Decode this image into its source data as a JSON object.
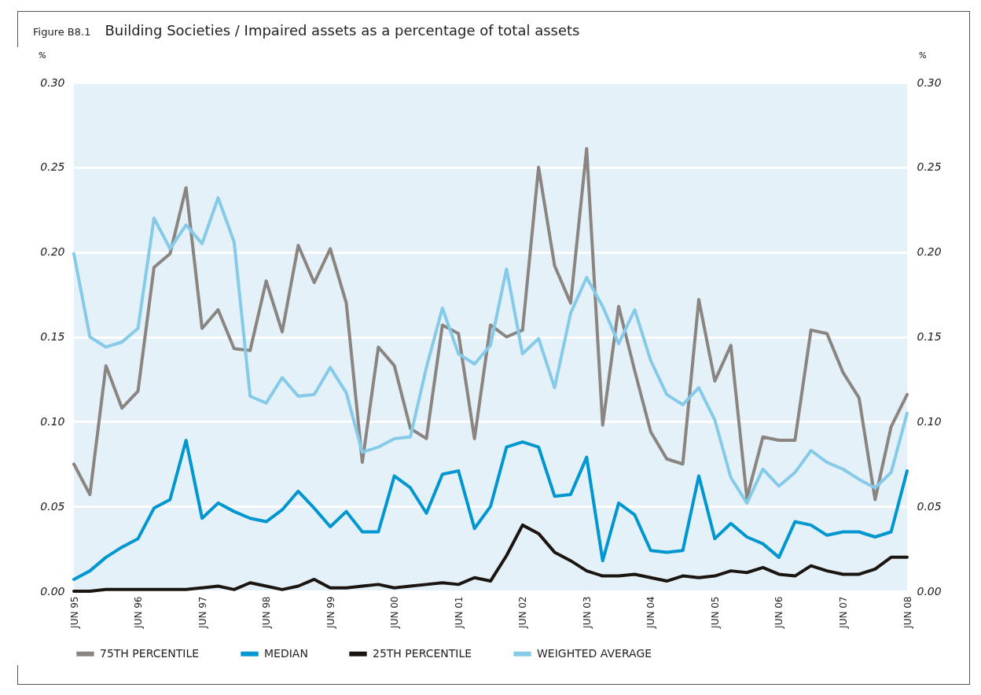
{
  "chart_data": {
    "type": "line",
    "title": "Building Societies / Impaired assets as a percentage of total assets",
    "annotations": [
      "Figure B8.1"
    ],
    "ylabel": "%",
    "y2label": "%",
    "categories": [
      "JUN 95",
      null,
      null,
      null,
      "JUN 96",
      null,
      null,
      null,
      "JUN 97",
      null,
      null,
      null,
      "JUN 98",
      null,
      null,
      null,
      "JUN 99",
      null,
      null,
      null,
      "JUN 00",
      null,
      null,
      null,
      "JUN 01",
      null,
      null,
      null,
      "JUN 02",
      null,
      null,
      null,
      "JUN 03",
      null,
      null,
      null,
      "JUN 04",
      null,
      null,
      null,
      "JUN 05",
      null,
      null,
      null,
      "JUN 06",
      null,
      null,
      null,
      "JUN 07",
      null,
      null,
      null,
      "JUN 08"
    ],
    "series": [
      {
        "name": "75TH PERCENTILE",
        "color": "#8a8580",
        "values": [
          0.075,
          0.057,
          0.133,
          0.108,
          0.118,
          0.191,
          0.199,
          0.238,
          0.155,
          0.166,
          0.143,
          0.142,
          0.183,
          0.153,
          0.204,
          0.182,
          0.202,
          0.17,
          0.076,
          0.144,
          0.133,
          0.096,
          0.09,
          0.157,
          0.152,
          0.09,
          0.157,
          0.15,
          0.154,
          0.25,
          0.192,
          0.17,
          0.261,
          0.098,
          0.168,
          0.13,
          0.094,
          0.078,
          0.075,
          0.172,
          0.124,
          0.145,
          0.055,
          0.091,
          0.089,
          0.089,
          0.154,
          0.152,
          0.129,
          0.114,
          0.054,
          0.097,
          0.116
        ]
      },
      {
        "name": "MEDIAN",
        "color": "#0096d0",
        "values": [
          0.007,
          0.012,
          0.02,
          0.026,
          0.031,
          0.049,
          0.054,
          0.089,
          0.043,
          0.052,
          0.047,
          0.043,
          0.041,
          0.048,
          0.059,
          0.049,
          0.038,
          0.047,
          0.035,
          0.035,
          0.068,
          0.061,
          0.046,
          0.069,
          0.071,
          0.037,
          0.05,
          0.085,
          0.088,
          0.085,
          0.056,
          0.057,
          0.079,
          0.018,
          0.052,
          0.045,
          0.024,
          0.023,
          0.024,
          0.068,
          0.031,
          0.04,
          0.032,
          0.028,
          0.02,
          0.041,
          0.039,
          0.033,
          0.035,
          0.035,
          0.032,
          0.035,
          0.071
        ]
      },
      {
        "name": "25TH PERCENTILE",
        "color": "#1a1510",
        "values": [
          0.0,
          0.0,
          0.001,
          0.001,
          0.001,
          0.001,
          0.001,
          0.001,
          0.002,
          0.003,
          0.001,
          0.005,
          0.003,
          0.001,
          0.003,
          0.007,
          0.002,
          0.002,
          0.003,
          0.004,
          0.002,
          0.003,
          0.004,
          0.005,
          0.004,
          0.008,
          0.006,
          0.021,
          0.039,
          0.034,
          0.023,
          0.018,
          0.012,
          0.009,
          0.009,
          0.01,
          0.008,
          0.006,
          0.009,
          0.008,
          0.009,
          0.012,
          0.011,
          0.014,
          0.01,
          0.009,
          0.015,
          0.012,
          0.01,
          0.01,
          0.013,
          0.02,
          0.02
        ]
      },
      {
        "name": "WEIGHTED AVERAGE",
        "color": "#85cbe9",
        "values": [
          0.199,
          0.15,
          0.144,
          0.147,
          0.155,
          0.22,
          0.202,
          0.216,
          0.205,
          0.232,
          0.206,
          0.115,
          0.111,
          0.126,
          0.115,
          0.116,
          0.132,
          0.117,
          0.082,
          0.085,
          0.09,
          0.091,
          0.132,
          0.167,
          0.14,
          0.134,
          0.145,
          0.19,
          0.14,
          0.149,
          0.12,
          0.164,
          0.185,
          0.168,
          0.146,
          0.166,
          0.136,
          0.116,
          0.11,
          0.12,
          0.101,
          0.067,
          0.052,
          0.072,
          0.062,
          0.07,
          0.083,
          0.076,
          0.072,
          0.066,
          0.061,
          0.07,
          0.105
        ]
      }
    ],
    "ylim": [
      0,
      0.3
    ],
    "yticks": [
      {
        "value": 0,
        "label": "0.00"
      },
      {
        "value": 0.05,
        "label": "0.05"
      },
      {
        "value": 0.1,
        "label": "0.10"
      },
      {
        "value": 0.15,
        "label": "0.15"
      },
      {
        "value": 0.2,
        "label": "0.20"
      },
      {
        "value": 0.25,
        "label": "0.25"
      },
      {
        "value": 0.3,
        "label": "0.30"
      }
    ],
    "y2lim": [
      0,
      0.3
    ],
    "y2ticks": [
      {
        "value": 0,
        "label": "0.00"
      },
      {
        "value": 0.05,
        "label": "0.05"
      },
      {
        "value": 0.1,
        "label": "0.10"
      },
      {
        "value": 0.15,
        "label": "0.15"
      },
      {
        "value": 0.2,
        "label": "0.20"
      },
      {
        "value": 0.25,
        "label": "0.25"
      },
      {
        "value": 0.3,
        "label": "0.30"
      }
    ],
    "grid": "y",
    "legend": "bottom"
  }
}
